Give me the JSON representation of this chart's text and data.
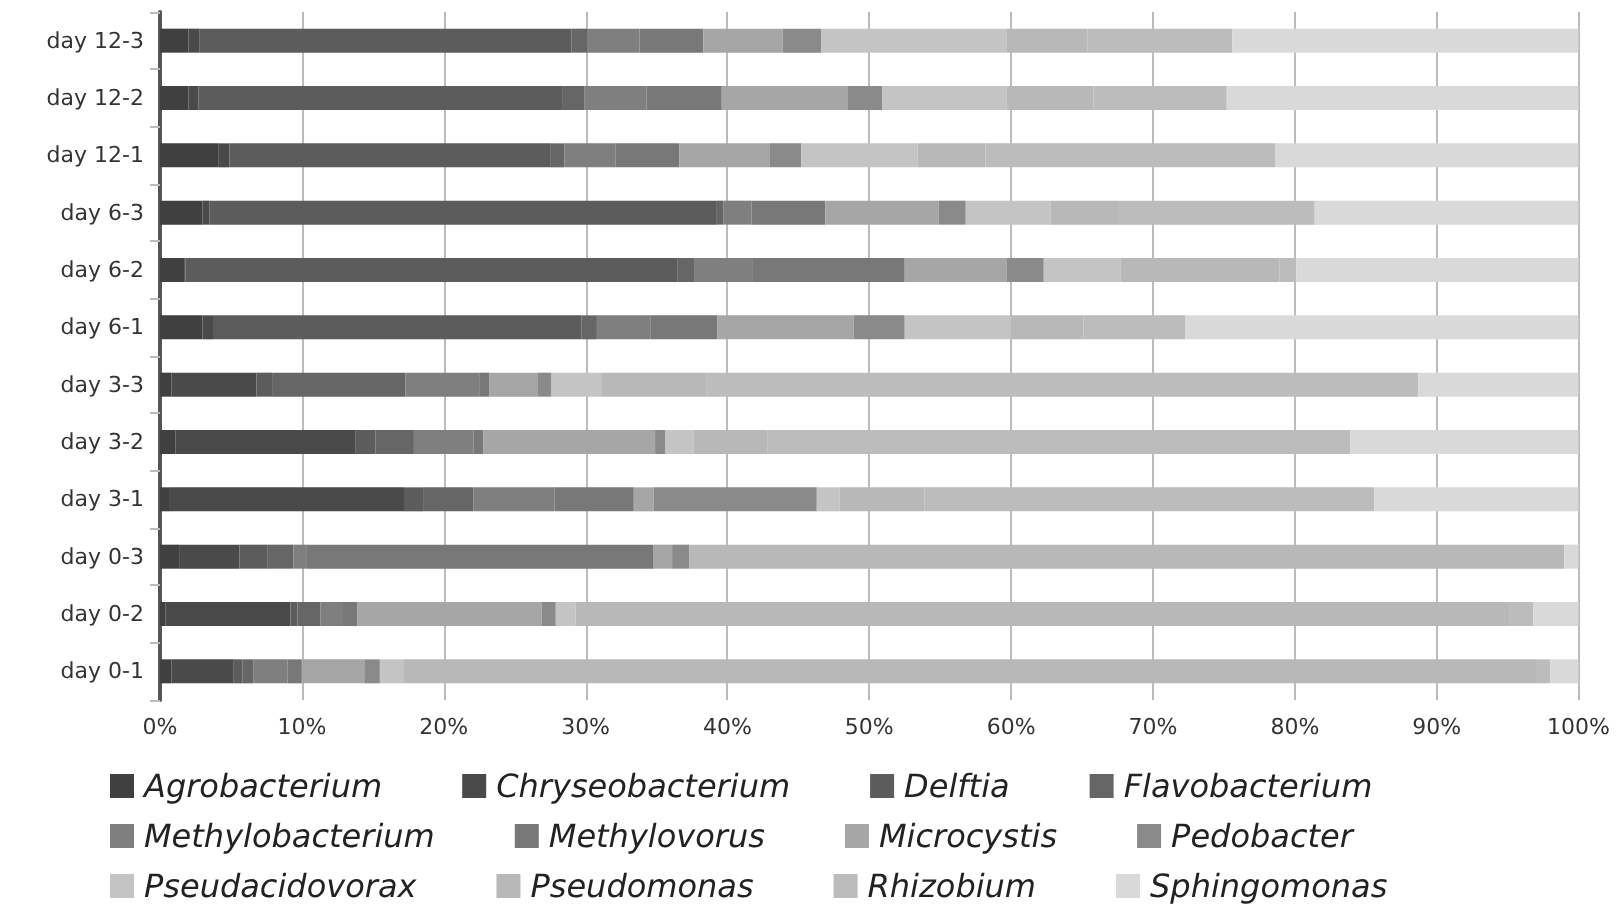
{
  "chart_data": {
    "type": "bar",
    "orientation": "horizontal",
    "stacked": true,
    "categories": [
      "day 12-3",
      "day 12-2",
      "day 12-1",
      "day 6-3",
      "day 6-2",
      "day 6-1",
      "day 3-3",
      "day 3-2",
      "day 3-1",
      "day 0-3",
      "day 0-2",
      "day 0-1"
    ],
    "series": [
      {
        "name": "Agrobacterium",
        "color": "#404040",
        "values": [
          2.0,
          2.0,
          4.1,
          3.0,
          1.7,
          3.0,
          0.8,
          1.1,
          0.7,
          1.4,
          0.4,
          0.8
        ]
      },
      {
        "name": "Chryseobacterium",
        "color": "#4a4a4a",
        "values": [
          0.8,
          0.7,
          0.8,
          0.5,
          0.1,
          0.8,
          6.0,
          12.7,
          16.5,
          4.2,
          8.8,
          4.4
        ]
      },
      {
        "name": "Delftia",
        "color": "#5c5c5c",
        "values": [
          26.2,
          25.7,
          22.6,
          35.7,
          34.7,
          25.9,
          1.1,
          1.4,
          1.4,
          2.0,
          0.5,
          0.6
        ]
      },
      {
        "name": "Flavobacterium",
        "color": "#666666",
        "values": [
          1.1,
          1.5,
          1.0,
          0.5,
          1.2,
          1.1,
          9.4,
          2.7,
          3.5,
          1.8,
          1.6,
          0.8
        ]
      },
      {
        "name": "Methylobacterium",
        "color": "#7f7f7f",
        "values": [
          3.7,
          4.4,
          3.6,
          2.0,
          4.1,
          3.8,
          5.2,
          4.2,
          5.7,
          0.9,
          1.6,
          2.4
        ]
      },
      {
        "name": "Methylovorus",
        "color": "#787878",
        "values": [
          4.5,
          5.3,
          4.5,
          5.2,
          10.7,
          4.7,
          0.7,
          0.7,
          5.6,
          24.5,
          1.0,
          1.0
        ]
      },
      {
        "name": "Microcystis",
        "color": "#a6a6a6",
        "values": [
          5.6,
          8.9,
          6.4,
          8.0,
          7.2,
          9.6,
          3.4,
          12.1,
          1.4,
          1.3,
          13.0,
          4.4
        ]
      },
      {
        "name": "Pedobacter",
        "color": "#8a8a8a",
        "values": [
          2.7,
          2.4,
          2.2,
          1.9,
          2.6,
          3.6,
          1.0,
          0.7,
          11.5,
          1.2,
          1.0,
          1.1
        ]
      },
      {
        "name": "Pseudacidovorax",
        "color": "#c4c4c4",
        "values": [
          13.1,
          8.8,
          8.2,
          6.0,
          5.4,
          7.5,
          3.5,
          2.0,
          1.6,
          0,
          1.4,
          1.7
        ]
      },
      {
        "name": "Pseudomonas",
        "color": "#b8b8b8",
        "values": [
          5.7,
          6.1,
          4.8,
          4.8,
          11.2,
          5.1,
          7.4,
          5.2,
          6.0,
          61.7,
          65.8,
          79.8
        ]
      },
      {
        "name": "Rhizobium",
        "color": "#bcbcbc",
        "values": [
          10.2,
          9.4,
          20.4,
          13.8,
          1.2,
          7.2,
          50.2,
          41.1,
          31.7,
          0,
          1.7,
          1.0
        ]
      },
      {
        "name": "Sphingomonas",
        "color": "#d9d9d9",
        "values": [
          24.4,
          24.8,
          21.4,
          18.6,
          19.9,
          27.7,
          11.3,
          16.1,
          14.4,
          1.0,
          3.2,
          2.0
        ]
      }
    ],
    "xlim": [
      0,
      100
    ],
    "xticks": [
      {
        "value": 0,
        "label": "0%"
      },
      {
        "value": 10,
        "label": "10%"
      },
      {
        "value": 20,
        "label": "20%"
      },
      {
        "value": 30,
        "label": "30%"
      },
      {
        "value": 40,
        "label": "40%"
      },
      {
        "value": 50,
        "label": "50%"
      },
      {
        "value": 60,
        "label": "60%"
      },
      {
        "value": 70,
        "label": "70%"
      },
      {
        "value": 80,
        "label": "80%"
      },
      {
        "value": 90,
        "label": "90%"
      },
      {
        "value": 100,
        "label": "100%"
      }
    ],
    "grid": "x",
    "legend": "bottom"
  }
}
